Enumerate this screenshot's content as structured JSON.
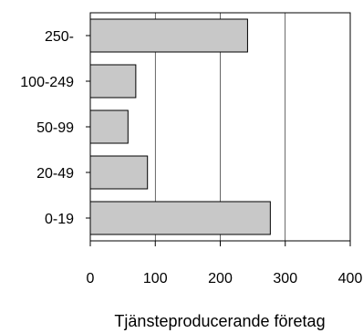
{
  "chart_data": {
    "type": "bar",
    "orientation": "horizontal",
    "title": "",
    "xlabel": "Tjänsteproducerande företag",
    "ylabel": "",
    "categories": [
      "250-",
      "100-249",
      "50-99",
      "20-49",
      "0-19"
    ],
    "values": [
      242,
      70,
      58,
      88,
      277
    ],
    "xlim": [
      0,
      400
    ],
    "xticks": [
      0,
      100,
      200,
      300,
      400
    ],
    "grid": "vertical",
    "legend": "none",
    "colors": {
      "bar_fill": "#c8c8c8",
      "bar_stroke": "#000000",
      "grid": "#000000",
      "background": "#ffffff"
    }
  }
}
